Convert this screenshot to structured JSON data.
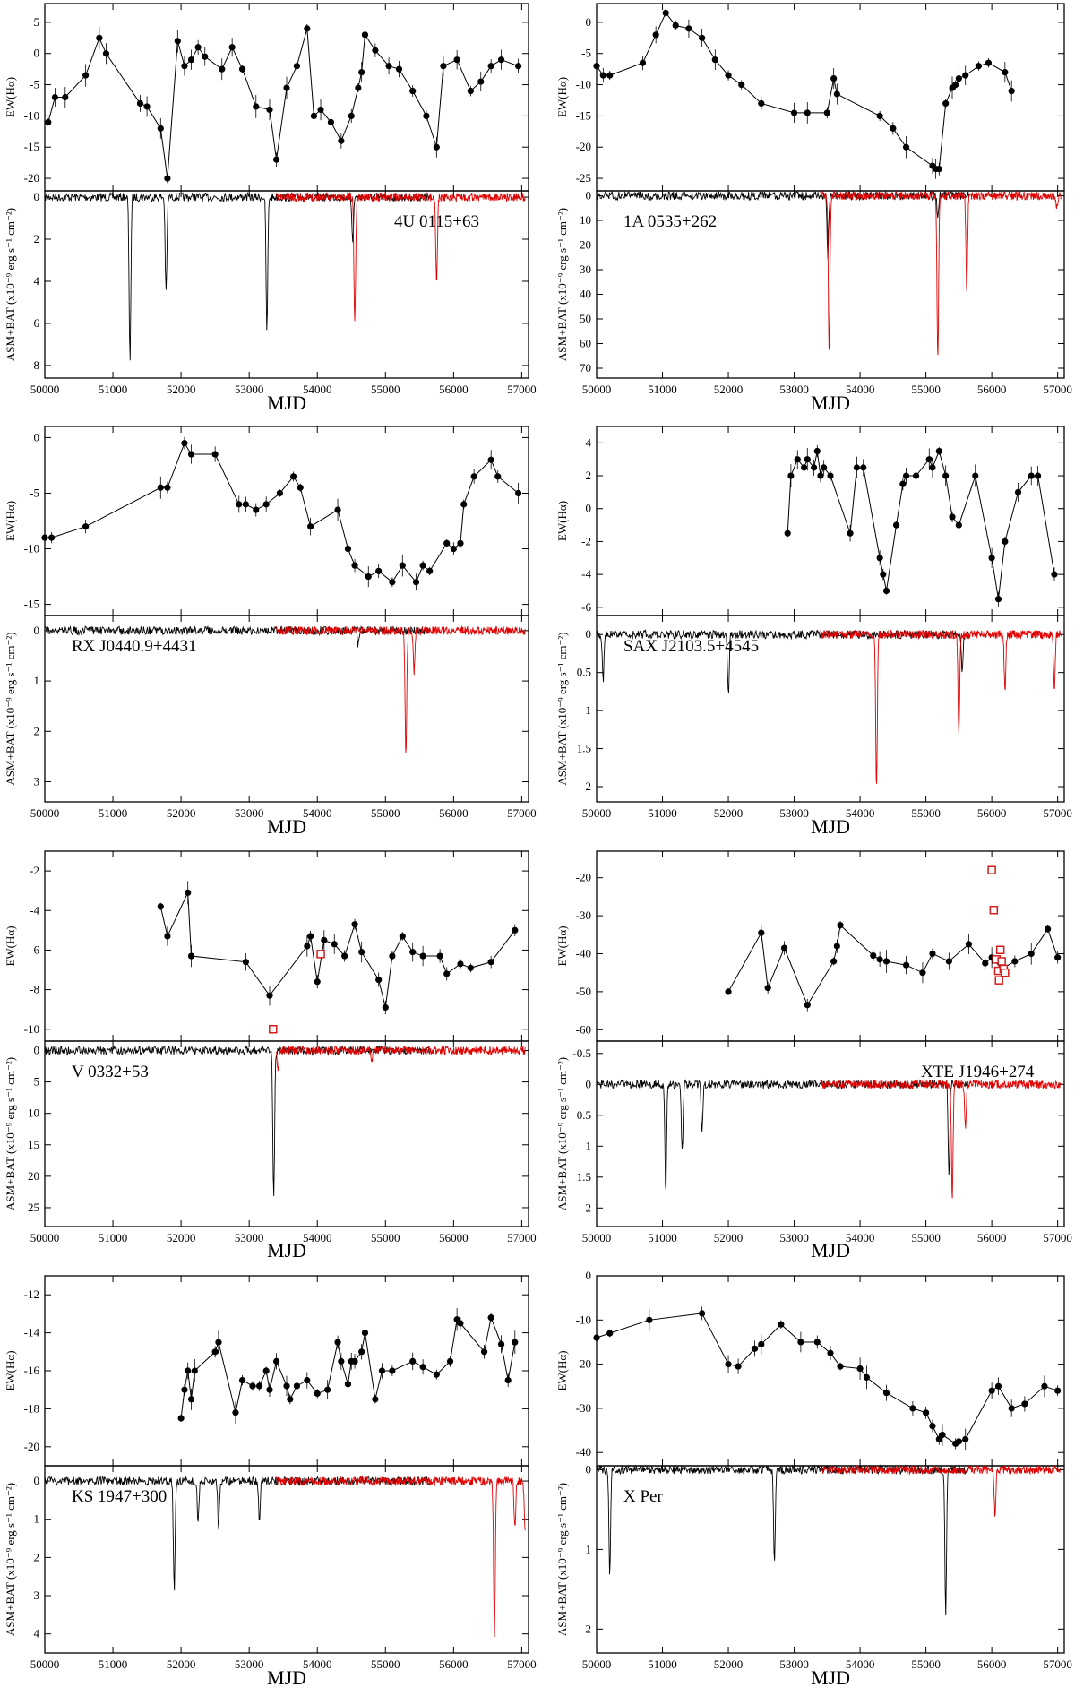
{
  "figure": {
    "x_axis_label": "MJD",
    "ew_label": "EW(Hα)",
    "flux_label": "ASM+BAT (x10⁻⁹ erg s⁻¹ cm⁻²)"
  },
  "colors": {
    "asm": "#000000",
    "bat": "#e00000",
    "ew": "#000000",
    "special": "#d41c1c"
  },
  "chart_data": [
    {
      "type": "line",
      "source": "4U 0115+63",
      "x_range": [
        50000,
        57100
      ],
      "x_ticks": [
        50000,
        51000,
        52000,
        53000,
        54000,
        55000,
        56000,
        57000
      ],
      "ew": {
        "ylim": [
          8,
          -22
        ],
        "yticks": [
          -20,
          -15,
          -10,
          -5,
          0,
          5
        ],
        "x": [
          50050,
          50150,
          50300,
          50600,
          50800,
          50900,
          51400,
          51500,
          51700,
          51800,
          51950,
          52050,
          52150,
          52250,
          52350,
          52600,
          52750,
          52900,
          53100,
          53300,
          53400,
          53550,
          53700,
          53850,
          53950,
          54050,
          54200,
          54350,
          54500,
          54600,
          54650,
          54700,
          54850,
          55050,
          55200,
          55400,
          55600,
          55750,
          55850,
          56050,
          56250,
          56400,
          56550,
          56700,
          56950
        ],
        "y": [
          -11,
          -7,
          -7,
          -3.5,
          2.5,
          0,
          -8,
          -8.5,
          -12,
          -20,
          2,
          -2,
          -1,
          1,
          -0.5,
          -2.5,
          1,
          -2.5,
          -8.5,
          -9,
          -17,
          -5.5,
          -2,
          4,
          -10,
          -9,
          -11,
          -14,
          -10,
          -5.5,
          -3,
          3,
          0.5,
          -2,
          -2.5,
          -6,
          -10,
          -15,
          -2,
          -1,
          -6,
          -4.5,
          -2,
          -1,
          -2
        ]
      },
      "flux": {
        "ylim": [
          -0.3,
          8.6
        ],
        "yticks": [
          0,
          2,
          4,
          6,
          8
        ],
        "asm": {
          "range": [
            50000,
            55650
          ],
          "spikes": [
            [
              51250,
              7.8
            ],
            [
              51780,
              4.6
            ],
            [
              53260,
              6.5
            ],
            [
              54520,
              2.0
            ]
          ]
        },
        "bat": {
          "range": [
            53400,
            57050
          ],
          "spikes": [
            [
              54550,
              5.9
            ],
            [
              55750,
              4.0
            ]
          ]
        }
      }
    },
    {
      "type": "line",
      "source": "1A 0535+262",
      "x_range": [
        50000,
        57100
      ],
      "x_ticks": [
        50000,
        51000,
        52000,
        53000,
        54000,
        55000,
        56000,
        57000
      ],
      "ew": {
        "ylim": [
          3,
          -27
        ],
        "yticks": [
          -25,
          -20,
          -15,
          -10,
          -5,
          0
        ],
        "x": [
          50000,
          50100,
          50200,
          50700,
          50900,
          51050,
          51200,
          51400,
          51600,
          51800,
          52000,
          52200,
          52500,
          53000,
          53200,
          53500,
          53600,
          53650,
          54300,
          54500,
          54700,
          55100,
          55150,
          55200,
          55300,
          55400,
          55450,
          55500,
          55600,
          55800,
          55950,
          56200,
          56300
        ],
        "y": [
          -7,
          -8.5,
          -8.5,
          -6.5,
          -2,
          1.5,
          -0.5,
          -1,
          -2.5,
          -6,
          -8.5,
          -10,
          -13,
          -14.5,
          -14.5,
          -14.5,
          -9,
          -11.5,
          -15,
          -17,
          -20,
          -23,
          -23.5,
          -23.5,
          -13,
          -10.5,
          -10,
          -9,
          -8.5,
          -7,
          -6.5,
          -8,
          -11
        ]
      },
      "flux": {
        "ylim": [
          -2,
          74
        ],
        "yticks": [
          0,
          10,
          20,
          30,
          40,
          50,
          60,
          70
        ],
        "asm": {
          "range": [
            50000,
            55650
          ],
          "spikes": [
            [
              53510,
              25
            ],
            [
              55180,
              8
            ]
          ]
        },
        "bat": {
          "range": [
            53400,
            57050
          ],
          "spikes": [
            [
              53530,
              62
            ],
            [
              55180,
              66
            ],
            [
              55620,
              38
            ],
            [
              56990,
              5
            ]
          ]
        }
      }
    },
    {
      "type": "line",
      "source": "RX J0440.9+4431",
      "x_range": [
        50000,
        57100
      ],
      "x_ticks": [
        50000,
        51000,
        52000,
        53000,
        54000,
        55000,
        56000,
        57000
      ],
      "ew": {
        "ylim": [
          1,
          -16
        ],
        "yticks": [
          -15,
          -10,
          -5,
          0
        ],
        "x": [
          50000,
          50100,
          50600,
          51700,
          51800,
          52050,
          52150,
          52500,
          52850,
          52950,
          53100,
          53250,
          53450,
          53650,
          53750,
          53900,
          54300,
          54450,
          54550,
          54750,
          54900,
          55100,
          55250,
          55450,
          55550,
          55650,
          55900,
          56000,
          56100,
          56150,
          56300,
          56550,
          56650,
          56950
        ],
        "y": [
          -9,
          -9,
          -8,
          -4.5,
          -4.5,
          -0.5,
          -1.5,
          -1.5,
          -6,
          -6,
          -6.5,
          -6,
          -5,
          -3.5,
          -4.5,
          -8,
          -6.5,
          -10,
          -11.5,
          -12.5,
          -12,
          -13,
          -11.5,
          -13,
          -11.5,
          -12,
          -9.5,
          -10,
          -9.5,
          -6,
          -3.5,
          -2,
          -3.5,
          -5
        ]
      },
      "flux": {
        "ylim": [
          -0.3,
          3.4
        ],
        "yticks": [
          0,
          1,
          2,
          3
        ],
        "asm": {
          "range": [
            50000,
            55650
          ],
          "spikes": [
            [
              54600,
              0.3
            ]
          ]
        },
        "bat": {
          "range": [
            53400,
            57050
          ],
          "spikes": [
            [
              55300,
              2.4
            ],
            [
              55420,
              0.8
            ]
          ]
        }
      }
    },
    {
      "type": "line",
      "source": "SAX J2103.5+4545",
      "x_range": [
        50000,
        57100
      ],
      "x_ticks": [
        50000,
        51000,
        52000,
        53000,
        54000,
        55000,
        56000,
        57000
      ],
      "ew": {
        "ylim": [
          5,
          -6.5
        ],
        "yticks": [
          -6,
          -4,
          -2,
          0,
          2,
          4
        ],
        "x": [
          52900,
          52950,
          53050,
          53150,
          53200,
          53300,
          53350,
          53400,
          53450,
          53550,
          53850,
          53950,
          54050,
          54300,
          54350,
          54400,
          54550,
          54650,
          54700,
          54850,
          55050,
          55100,
          55200,
          55300,
          55400,
          55500,
          55750,
          56000,
          56100,
          56200,
          56400,
          56600,
          56700,
          56950
        ],
        "y": [
          -1.5,
          2,
          3,
          2.5,
          3,
          2.5,
          3.5,
          2,
          2.5,
          2,
          -1.5,
          2.5,
          2.5,
          -3,
          -4,
          -5,
          -1,
          1.5,
          2,
          2,
          3,
          2.5,
          3.5,
          2,
          -0.5,
          -1,
          2,
          -3,
          -5.5,
          -2,
          1,
          2,
          2,
          -4
        ]
      },
      "flux": {
        "ylim": [
          -0.25,
          2.2
        ],
        "yticks": [
          0,
          0.5,
          1,
          1.5,
          2
        ],
        "asm": {
          "range": [
            50000,
            55650
          ],
          "spikes": [
            [
              50100,
              0.6
            ],
            [
              52000,
              0.8
            ],
            [
              55550,
              0.5
            ]
          ]
        },
        "bat": {
          "range": [
            53400,
            57050
          ],
          "spikes": [
            [
              54250,
              2.0
            ],
            [
              55500,
              1.3
            ],
            [
              56200,
              0.75
            ],
            [
              56950,
              0.7
            ]
          ]
        }
      }
    },
    {
      "type": "line",
      "source": "V 0332+53",
      "x_range": [
        50000,
        57100
      ],
      "x_ticks": [
        50000,
        51000,
        52000,
        53000,
        54000,
        55000,
        56000,
        57000
      ],
      "ew": {
        "ylim": [
          -1,
          -10.6
        ],
        "yticks": [
          -10,
          -8,
          -6,
          -4,
          -2
        ],
        "x": [
          51700,
          51800,
          52100,
          52150,
          52950,
          53300,
          53850,
          53900,
          54000,
          54100,
          54250,
          54400,
          54550,
          54650,
          54900,
          55000,
          55100,
          55250,
          55400,
          55550,
          55800,
          55900,
          56100,
          56250,
          56550,
          56900
        ],
        "y": [
          -3.8,
          -5.3,
          -3.1,
          -6.3,
          -6.6,
          -8.3,
          -5.8,
          -5.3,
          -7.6,
          -5.5,
          -5.7,
          -6.3,
          -4.7,
          -6.1,
          -7.5,
          -8.9,
          -6.3,
          -5.3,
          -6.1,
          -6.3,
          -6.3,
          -7.2,
          -6.7,
          -6.9,
          -6.6,
          -5
        ]
      },
      "special": {
        "x": [
          53350,
          54050
        ],
        "y": [
          -10,
          -6.2
        ]
      },
      "flux": {
        "ylim": [
          -1.5,
          28
        ],
        "yticks": [
          0,
          5,
          10,
          15,
          20,
          25
        ],
        "asm": {
          "range": [
            50000,
            55650
          ],
          "spikes": [
            [
              53360,
              24
            ]
          ]
        },
        "bat": {
          "range": [
            53400,
            57050
          ],
          "spikes": [
            [
              53420,
              3
            ],
            [
              54800,
              2
            ]
          ]
        }
      }
    },
    {
      "type": "line",
      "source": "XTE J1946+274",
      "x_range": [
        50000,
        57100
      ],
      "x_ticks": [
        50000,
        51000,
        52000,
        53000,
        54000,
        55000,
        56000,
        57000
      ],
      "ew": {
        "ylim": [
          -13,
          -63
        ],
        "yticks": [
          -60,
          -50,
          -40,
          -30,
          -20
        ],
        "x": [
          52000,
          52500,
          52600,
          52850,
          53200,
          53600,
          53650,
          53700,
          54200,
          54300,
          54400,
          54700,
          54950,
          55100,
          55350,
          55650,
          55900,
          56000,
          56150,
          56350,
          56600,
          56850,
          57000
        ],
        "y": [
          -50,
          -34.5,
          -49,
          -38.5,
          -53.5,
          -42,
          -38,
          -32.5,
          -40.5,
          -41.5,
          -42,
          -43,
          -45,
          -40,
          -42,
          -37.5,
          -42.5,
          -41,
          -44,
          -42,
          -40,
          -33.5,
          -41
        ]
      },
      "special": {
        "x": [
          56000,
          56030,
          56070,
          56100,
          56110,
          56130,
          56150,
          56180,
          56200
        ],
        "y": [
          -18,
          -28.5,
          -41.5,
          -44.5,
          -47,
          -39,
          -42,
          -44,
          -45
        ]
      },
      "flux": {
        "ylim": [
          -0.7,
          2.3
        ],
        "yticks": [
          -0.5,
          0,
          0.5,
          1,
          1.5,
          2
        ],
        "asm": {
          "range": [
            50000,
            55650
          ],
          "spikes": [
            [
              51050,
              1.8
            ],
            [
              51300,
              1.1
            ],
            [
              51600,
              0.8
            ],
            [
              55350,
              1.5
            ]
          ]
        },
        "bat": {
          "range": [
            53400,
            57050
          ],
          "spikes": [
            [
              55400,
              1.8
            ],
            [
              55600,
              0.7
            ]
          ]
        }
      }
    },
    {
      "type": "line",
      "source": "KS 1947+300",
      "x_range": [
        50000,
        57100
      ],
      "x_ticks": [
        50000,
        51000,
        52000,
        53000,
        54000,
        55000,
        56000,
        57000
      ],
      "ew": {
        "ylim": [
          -11,
          -21
        ],
        "yticks": [
          -20,
          -18,
          -16,
          -14,
          -12
        ],
        "x": [
          52000,
          52050,
          52100,
          52150,
          52200,
          52500,
          52550,
          52800,
          52900,
          53050,
          53150,
          53250,
          53300,
          53400,
          53550,
          53600,
          53700,
          53850,
          54000,
          54150,
          54300,
          54350,
          54450,
          54500,
          54550,
          54650,
          54700,
          54850,
          54950,
          55100,
          55400,
          55550,
          55750,
          55950,
          56050,
          56100,
          56450,
          56550,
          56700,
          56800,
          56900
        ],
        "y": [
          -18.5,
          -17,
          -16,
          -17.5,
          -16,
          -15,
          -14.5,
          -18.2,
          -16.5,
          -16.8,
          -16.8,
          -16,
          -17,
          -15.5,
          -16.8,
          -17.5,
          -16.8,
          -16.5,
          -17.2,
          -17,
          -14.5,
          -15.5,
          -16.7,
          -15.5,
          -15.5,
          -15,
          -14,
          -17.5,
          -16,
          -16,
          -15.5,
          -15.8,
          -16.2,
          -15.5,
          -13.3,
          -13.5,
          -15,
          -13.2,
          -14.6,
          -16.5,
          -14.5
        ]
      },
      "flux": {
        "ylim": [
          -0.4,
          4.5
        ],
        "yticks": [
          0,
          1,
          2,
          3,
          4
        ],
        "asm": {
          "range": [
            50000,
            55650
          ],
          "spikes": [
            [
              51900,
              2.9
            ],
            [
              52250,
              1.1
            ],
            [
              52550,
              1.2
            ],
            [
              53150,
              1.0
            ]
          ]
        },
        "bat": {
          "range": [
            53400,
            57050
          ],
          "spikes": [
            [
              56600,
              4.0
            ],
            [
              56900,
              1.2
            ],
            [
              57050,
              1.2
            ]
          ]
        }
      }
    },
    {
      "type": "line",
      "source": "X Per",
      "x_range": [
        50000,
        57100
      ],
      "x_ticks": [
        50000,
        51000,
        52000,
        53000,
        54000,
        55000,
        56000,
        57000
      ],
      "ew": {
        "ylim": [
          0,
          -43
        ],
        "yticks": [
          -40,
          -30,
          -20,
          -10,
          0
        ],
        "x": [
          50000,
          50200,
          50800,
          51600,
          52000,
          52150,
          52400,
          52500,
          52800,
          53100,
          53350,
          53550,
          53700,
          54000,
          54100,
          54400,
          54800,
          55000,
          55100,
          55200,
          55250,
          55450,
          55500,
          55600,
          56000,
          56100,
          56300,
          56500,
          56800,
          57000
        ],
        "y": [
          -14,
          -13,
          -10,
          -8.5,
          -20,
          -20.5,
          -16.5,
          -15.5,
          -11,
          -15,
          -15,
          -17.5,
          -20.5,
          -21,
          -23,
          -26.5,
          -30,
          -31,
          -34,
          -37,
          -36,
          -38,
          -37.5,
          -37,
          -26,
          -25,
          -30,
          -29,
          -25,
          -26
        ]
      },
      "flux": {
        "ylim": [
          -0.05,
          2.3
        ],
        "yticks": [
          0,
          1,
          2
        ],
        "asm": {
          "range": [
            50000,
            55650
          ],
          "spikes": [
            [
              50200,
              1.3
            ],
            [
              52700,
              1.2
            ],
            [
              55300,
              1.8
            ]
          ]
        },
        "bat": {
          "range": [
            53400,
            57050
          ],
          "spikes": [
            [
              56050,
              0.6
            ]
          ]
        }
      }
    }
  ]
}
